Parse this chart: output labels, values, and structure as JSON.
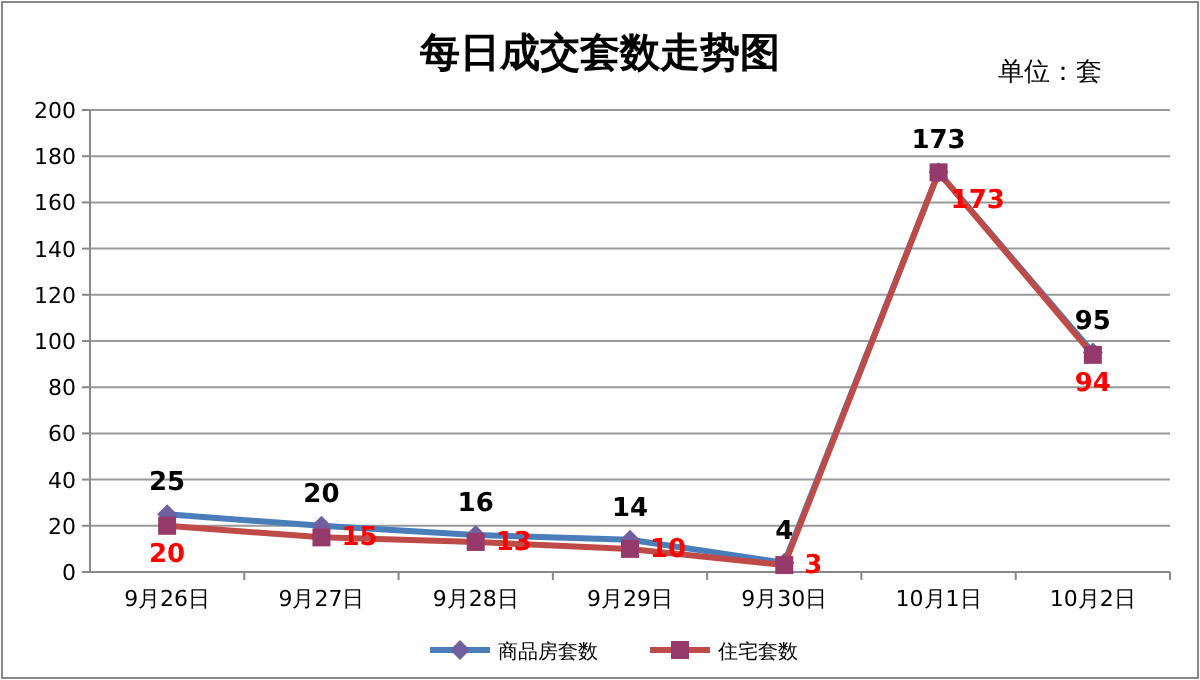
{
  "chart_data": {
    "type": "line",
    "title": "每日成交套数走势图",
    "subtitle": "单位：套",
    "categories": [
      "9月26日",
      "9月27日",
      "9月28日",
      "9月29日",
      "9月30日",
      "10月1日",
      "10月2日"
    ],
    "series": [
      {
        "name": "商品房套数",
        "color": "#4a7ebb",
        "marker": "diamond",
        "values": [
          25,
          20,
          16,
          14,
          4,
          173,
          95
        ]
      },
      {
        "name": "住宅套数",
        "color": "#be4b48",
        "marker": "square",
        "values": [
          20,
          15,
          13,
          10,
          3,
          173,
          94
        ]
      }
    ],
    "ylim": [
      0,
      200
    ],
    "yticks": [
      0,
      20,
      40,
      60,
      80,
      100,
      120,
      140,
      160,
      180,
      200
    ],
    "grid": "y",
    "legend": "bottom",
    "data_labels": true
  }
}
